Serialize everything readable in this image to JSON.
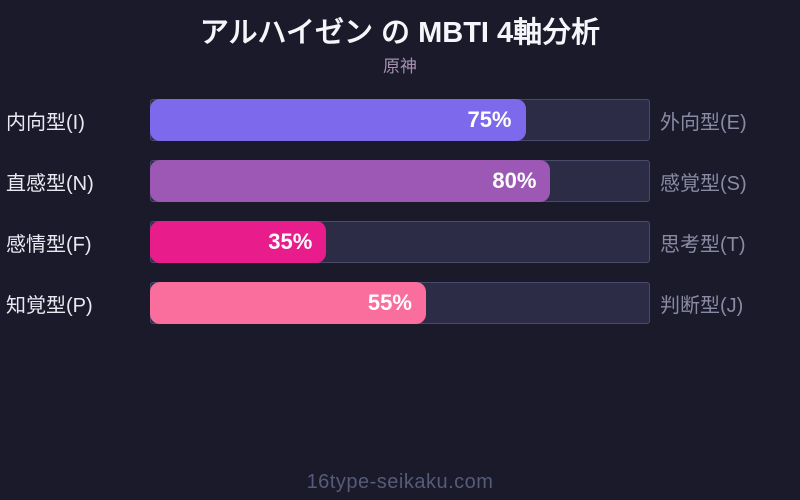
{
  "title": "アルハイゼン の MBTI 4軸分析",
  "subtitle": "原神",
  "footer": "16type-seikaku.com",
  "colors": {
    "background": "#1A1A2B",
    "track": "#2C2C47",
    "track_border": "#4A4A6A",
    "title_text": "#F5F5FA",
    "subtitle_text": "#A591AE",
    "left_label_text": "#E9E9F2",
    "right_label_text": "#8A8AA3",
    "value_text": "#FFFFFF",
    "footer_text": "#555B79"
  },
  "chart_data": {
    "type": "bar",
    "orientation": "horizontal",
    "title": "アルハイゼン の MBTI 4軸分析",
    "subtitle": "原神",
    "xlim": [
      0,
      100
    ],
    "value_suffix": "%",
    "grid": false,
    "legend": false,
    "axes": [
      {
        "left_label": "内向型(I)",
        "right_label": "外向型(E)",
        "value": 75,
        "value_label": "75%",
        "color": "#7D69EB"
      },
      {
        "left_label": "直感型(N)",
        "right_label": "感覚型(S)",
        "value": 80,
        "value_label": "80%",
        "color": "#9D57B4"
      },
      {
        "left_label": "感情型(F)",
        "right_label": "思考型(T)",
        "value": 35,
        "value_label": "35%",
        "color": "#E91C8C"
      },
      {
        "left_label": "知覚型(P)",
        "right_label": "判断型(J)",
        "value": 55,
        "value_label": "55%",
        "color": "#FA6E9D"
      }
    ]
  }
}
